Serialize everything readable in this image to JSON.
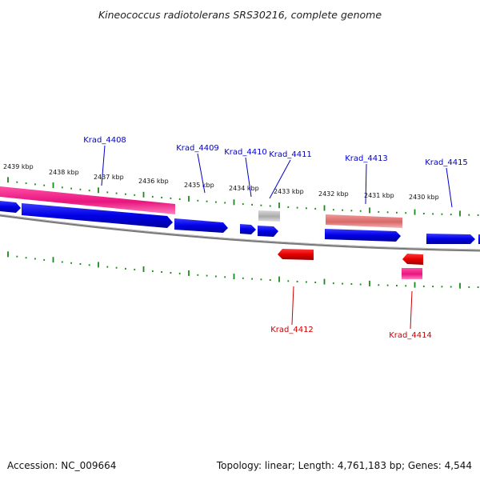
{
  "title": "Kineococcus radiotolerans SRS30216, complete genome",
  "footer": {
    "accession": "Accession: NC_009664",
    "summary": "Topology: linear; Length: 4,761,183 bp; Genes: 4,544"
  },
  "colors": {
    "forward_gene": "#0000e0",
    "reverse_gene": "#e00000",
    "forward_label": "#0000cc",
    "reverse_label": "#cc0000",
    "rna_feature": "#e81580",
    "pseudo_feature": "#e87878",
    "grey_feature": "#b4b4b4",
    "ticks": "#1a8a1a",
    "backbone": "#808080"
  },
  "kbp_labels": [
    "2439 kbp",
    "2438 kbp",
    "2437 kbp",
    "2436 kbp",
    "2435 kbp",
    "2434 kbp",
    "2433 kbp",
    "2432 kbp",
    "2431 kbp",
    "2430 kbp"
  ],
  "gene_labels": {
    "forward": [
      "Krad_4408",
      "Krad_4409",
      "Krad_4410",
      "Krad_4411",
      "Krad_4413",
      "Krad_4415"
    ],
    "reverse": [
      "Krad_4412",
      "Krad_4414"
    ]
  }
}
